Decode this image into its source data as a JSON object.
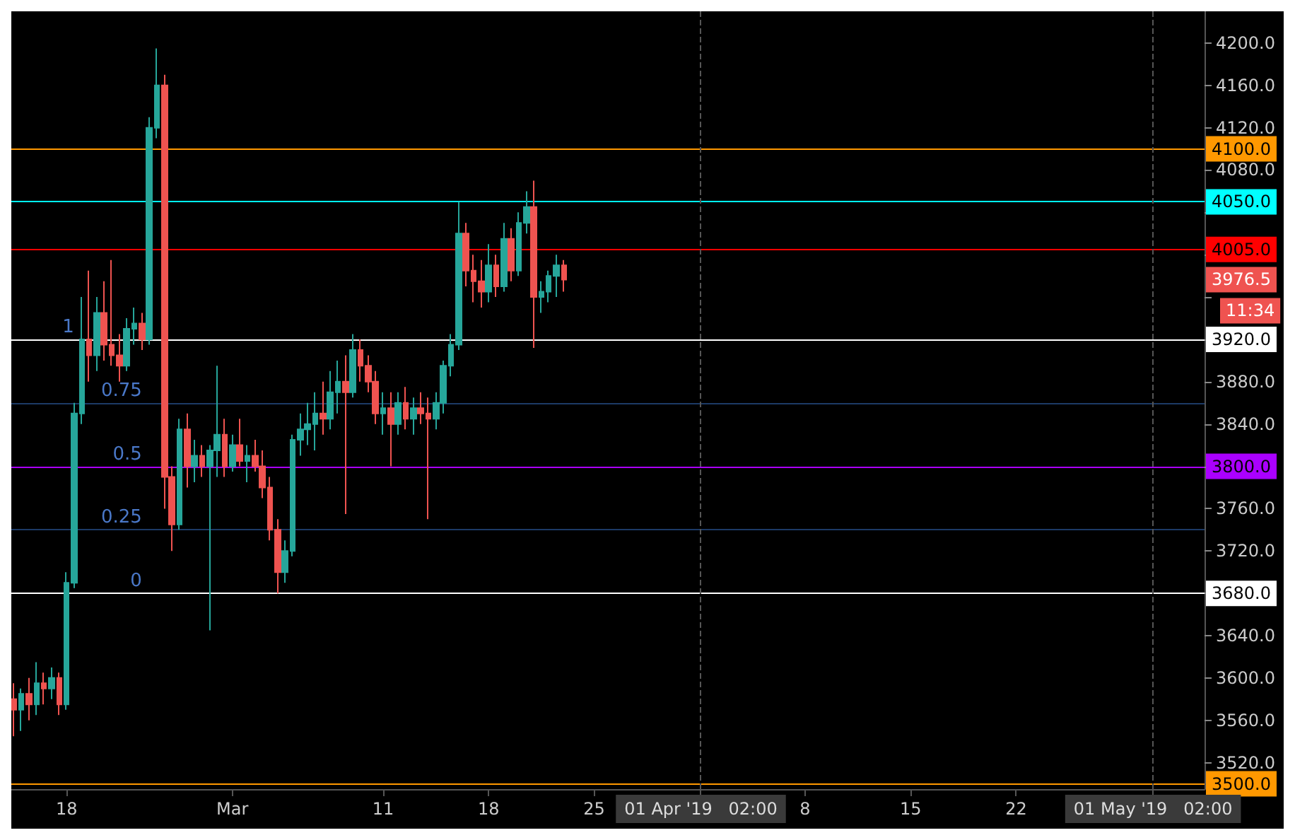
{
  "chart_data": {
    "type": "candlestick",
    "x": [
      "2019-02-14T12:00",
      "2019-02-15T00:00",
      "2019-02-15T12:00",
      "2019-02-16T00:00",
      "2019-02-16T12:00",
      "2019-02-17T00:00",
      "2019-02-17T12:00",
      "2019-02-18T00:00",
      "2019-02-18T12:00",
      "2019-02-19T00:00",
      "2019-02-19T12:00",
      "2019-02-20T00:00",
      "2019-02-20T12:00",
      "2019-02-21T00:00",
      "2019-02-21T12:00",
      "2019-02-22T00:00",
      "2019-02-22T12:00",
      "2019-02-23T00:00",
      "2019-02-23T12:00",
      "2019-02-24T00:00",
      "2019-02-24T12:00",
      "2019-02-25T00:00",
      "2019-02-25T12:00",
      "2019-02-26T00:00",
      "2019-02-26T12:00",
      "2019-02-27T00:00",
      "2019-02-27T12:00",
      "2019-02-28T00:00",
      "2019-02-28T12:00",
      "2019-03-01T00:00",
      "2019-03-01T12:00",
      "2019-03-02T00:00",
      "2019-03-02T12:00",
      "2019-03-03T00:00",
      "2019-03-03T12:00",
      "2019-03-04T00:00",
      "2019-03-04T12:00",
      "2019-03-05T00:00",
      "2019-03-05T12:00",
      "2019-03-06T00:00",
      "2019-03-06T12:00",
      "2019-03-07T00:00",
      "2019-03-07T12:00",
      "2019-03-08T00:00",
      "2019-03-08T12:00",
      "2019-03-09T00:00",
      "2019-03-09T12:00",
      "2019-03-10T00:00",
      "2019-03-10T12:00",
      "2019-03-11T00:00",
      "2019-03-11T12:00",
      "2019-03-12T00:00",
      "2019-03-12T12:00",
      "2019-03-13T00:00",
      "2019-03-13T12:00",
      "2019-03-14T00:00",
      "2019-03-14T12:00",
      "2019-03-15T00:00",
      "2019-03-15T12:00",
      "2019-03-16T00:00",
      "2019-03-16T12:00",
      "2019-03-17T00:00",
      "2019-03-17T12:00",
      "2019-03-18T00:00",
      "2019-03-18T12:00",
      "2019-03-19T00:00",
      "2019-03-19T12:00",
      "2019-03-20T00:00",
      "2019-03-20T12:00",
      "2019-03-21T00:00",
      "2019-03-21T12:00",
      "2019-03-22T00:00",
      "2019-03-22T12:00",
      "2019-03-23T00:00"
    ],
    "ohlc": [
      [
        3580,
        3595,
        3545,
        3570
      ],
      [
        3570,
        3590,
        3550,
        3585
      ],
      [
        3585,
        3600,
        3560,
        3575
      ],
      [
        3575,
        3615,
        3565,
        3595
      ],
      [
        3595,
        3605,
        3575,
        3590
      ],
      [
        3590,
        3610,
        3580,
        3600
      ],
      [
        3600,
        3605,
        3565,
        3575
      ],
      [
        3575,
        3700,
        3570,
        3690
      ],
      [
        3690,
        3860,
        3685,
        3850
      ],
      [
        3850,
        3960,
        3840,
        3920
      ],
      [
        3920,
        3985,
        3880,
        3905
      ],
      [
        3905,
        3960,
        3890,
        3945
      ],
      [
        3945,
        3975,
        3900,
        3915
      ],
      [
        3915,
        3995,
        3895,
        3905
      ],
      [
        3905,
        3925,
        3880,
        3895
      ],
      [
        3895,
        3940,
        3890,
        3930
      ],
      [
        3930,
        3950,
        3915,
        3935
      ],
      [
        3935,
        3945,
        3910,
        3920
      ],
      [
        3920,
        4130,
        3915,
        4120
      ],
      [
        4120,
        4195,
        4110,
        4160
      ],
      [
        4160,
        4170,
        3760,
        3790
      ],
      [
        3790,
        3800,
        3720,
        3745
      ],
      [
        3745,
        3845,
        3740,
        3835
      ],
      [
        3835,
        3850,
        3780,
        3800
      ],
      [
        3800,
        3825,
        3785,
        3810
      ],
      [
        3810,
        3820,
        3790,
        3800
      ],
      [
        3800,
        3820,
        3645,
        3815
      ],
      [
        3815,
        3895,
        3790,
        3830
      ],
      [
        3830,
        3845,
        3790,
        3800
      ],
      [
        3800,
        3830,
        3795,
        3820
      ],
      [
        3820,
        3845,
        3800,
        3805
      ],
      [
        3805,
        3820,
        3785,
        3810
      ],
      [
        3810,
        3825,
        3795,
        3800
      ],
      [
        3800,
        3815,
        3770,
        3780
      ],
      [
        3780,
        3790,
        3730,
        3740
      ],
      [
        3740,
        3750,
        3680,
        3700
      ],
      [
        3700,
        3730,
        3690,
        3720
      ],
      [
        3720,
        3830,
        3715,
        3825
      ],
      [
        3825,
        3850,
        3810,
        3835
      ],
      [
        3835,
        3860,
        3820,
        3840
      ],
      [
        3840,
        3870,
        3815,
        3850
      ],
      [
        3850,
        3880,
        3830,
        3845
      ],
      [
        3845,
        3890,
        3835,
        3870
      ],
      [
        3870,
        3900,
        3850,
        3880
      ],
      [
        3880,
        3905,
        3755,
        3870
      ],
      [
        3870,
        3925,
        3865,
        3910
      ],
      [
        3910,
        3920,
        3880,
        3895
      ],
      [
        3895,
        3905,
        3870,
        3880
      ],
      [
        3880,
        3890,
        3840,
        3850
      ],
      [
        3850,
        3870,
        3830,
        3855
      ],
      [
        3855,
        3870,
        3800,
        3840
      ],
      [
        3840,
        3870,
        3830,
        3860
      ],
      [
        3860,
        3875,
        3835,
        3845
      ],
      [
        3845,
        3865,
        3830,
        3855
      ],
      [
        3855,
        3870,
        3840,
        3850
      ],
      [
        3850,
        3865,
        3750,
        3845
      ],
      [
        3845,
        3870,
        3835,
        3860
      ],
      [
        3860,
        3900,
        3850,
        3895
      ],
      [
        3895,
        3925,
        3885,
        3915
      ],
      [
        3915,
        4050,
        3910,
        4020
      ],
      [
        4020,
        4030,
        3970,
        3985
      ],
      [
        3985,
        4000,
        3955,
        3975
      ],
      [
        3975,
        3995,
        3950,
        3965
      ],
      [
        3965,
        4010,
        3955,
        3990
      ],
      [
        3990,
        4000,
        3960,
        3970
      ],
      [
        3970,
        4030,
        3965,
        4015
      ],
      [
        4015,
        4025,
        3975,
        3985
      ],
      [
        3985,
        4040,
        3980,
        4030
      ],
      [
        4030,
        4060,
        4020,
        4045
      ],
      [
        4045,
        4070,
        3912,
        3960
      ],
      [
        3960,
        3975,
        3945,
        3965
      ],
      [
        3965,
        3985,
        3955,
        3980
      ],
      [
        3980,
        4000,
        3960,
        3990
      ],
      [
        3990,
        3995,
        3965,
        3976.5
      ]
    ],
    "colors": [
      "#ef5350",
      "#26a69a",
      "#ef5350",
      "#26a69a",
      "#ef5350",
      "#26a69a",
      "#ef5350",
      "#26a69a",
      "#26a69a",
      "#26a69a",
      "#ef5350",
      "#26a69a",
      "#ef5350",
      "#ef5350",
      "#ef5350",
      "#26a69a",
      "#26a69a",
      "#ef5350",
      "#26a69a",
      "#26a69a",
      "#ef5350",
      "#ef5350",
      "#26a69a",
      "#ef5350",
      "#26a69a",
      "#ef5350",
      "#26a69a",
      "#26a69a",
      "#ef5350",
      "#26a69a",
      "#ef5350",
      "#26a69a",
      "#ef5350",
      "#ef5350",
      "#ef5350",
      "#ef5350",
      "#26a69a",
      "#26a69a",
      "#26a69a",
      "#26a69a",
      "#26a69a",
      "#ef5350",
      "#26a69a",
      "#26a69a",
      "#ef5350",
      "#26a69a",
      "#ef5350",
      "#ef5350",
      "#ef5350",
      "#26a69a",
      "#ef5350",
      "#26a69a",
      "#ef5350",
      "#26a69a",
      "#ef5350",
      "#ef5350",
      "#26a69a",
      "#26a69a",
      "#26a69a",
      "#26a69a",
      "#ef5350",
      "#ef5350",
      "#ef5350",
      "#26a69a",
      "#ef5350",
      "#26a69a",
      "#ef5350",
      "#26a69a",
      "#26a69a",
      "#ef5350",
      "#26a69a",
      "#26a69a",
      "#26a69a",
      "#ef5350"
    ],
    "xlim": [
      "2019-02-14T08:00",
      "2019-05-04T12:00"
    ],
    "xticks": [
      {
        "value": "2019-02-18",
        "label": "18"
      },
      {
        "value": "2019-03-01",
        "label": "Mar"
      },
      {
        "value": "2019-03-11",
        "label": "11"
      },
      {
        "value": "2019-03-18",
        "label": "18"
      },
      {
        "value": "2019-03-25",
        "label": "25"
      },
      {
        "value": "2019-04-01T02:00",
        "label": "01 Apr '19   02:00"
      },
      {
        "value": "2019-04-08",
        "label": "8"
      },
      {
        "value": "2019-04-15",
        "label": "15"
      },
      {
        "value": "2019-04-22",
        "label": "22"
      },
      {
        "value": "2019-05-01T02:00",
        "label": "01 May '19   02:00"
      }
    ],
    "ylim": [
      3495,
      4230
    ],
    "yticks": [
      {
        "value": 3520,
        "label": "3520.0"
      },
      {
        "value": 3560,
        "label": "3560.0"
      },
      {
        "value": 3600,
        "label": "3600.0"
      },
      {
        "value": 3640,
        "label": "3640.0"
      },
      {
        "value": 3680,
        "label": null
      },
      {
        "value": 3720,
        "label": "3720.0"
      },
      {
        "value": 3760,
        "label": "3760.0"
      },
      {
        "value": 3800,
        "label": null
      },
      {
        "value": 3840,
        "label": "3840.0"
      },
      {
        "value": 3880,
        "label": "3880.0"
      },
      {
        "value": 3920,
        "label": null
      },
      {
        "value": 3960,
        "label": null
      },
      {
        "value": 4000,
        "label": null
      },
      {
        "value": 4040,
        "label": null
      },
      {
        "value": 4080,
        "label": "4080.0"
      },
      {
        "value": 4120,
        "label": "4120.0"
      },
      {
        "value": 4160,
        "label": "4160.0"
      },
      {
        "value": 4200,
        "label": "4200.0"
      }
    ],
    "ref_lines": [
      {
        "axis": "y",
        "value": 4100,
        "label": "4100.0",
        "color": "#ff9800"
      },
      {
        "axis": "y",
        "value": 4050,
        "label": "4050.0",
        "color": "#00ffff"
      },
      {
        "axis": "y",
        "value": 4005,
        "label": "4005.0",
        "color": "#ff0000"
      },
      {
        "axis": "y",
        "value": 3920,
        "label": "3920.0",
        "color": "#ffffff"
      },
      {
        "axis": "y",
        "value": 3860,
        "color": "#1c3a66"
      },
      {
        "axis": "y",
        "value": 3800,
        "label": "3800.0",
        "color": "#aa00ff"
      },
      {
        "axis": "y",
        "value": 3740,
        "color": "#1c3a66"
      },
      {
        "axis": "y",
        "value": 3680,
        "label": "3680.0",
        "color": "#ffffff"
      },
      {
        "axis": "y",
        "value": 3500,
        "label": "3500.0",
        "color": "#ff9800"
      },
      {
        "axis": "x",
        "value": "2019-04-01T02:00",
        "color": "#555555",
        "line_style": "dashed"
      },
      {
        "axis": "x",
        "value": "2019-05-01T02:00",
        "color": "#555555",
        "line_style": "dashed"
      }
    ],
    "annotations": [
      {
        "text": "1",
        "x": "2019-02-18T12:00",
        "y": 3920
      },
      {
        "text": "0.75",
        "x": "2019-02-23T00:00",
        "y": 3860
      },
      {
        "text": "0.5",
        "x": "2019-02-23T00:00",
        "y": 3800
      },
      {
        "text": "0.25",
        "x": "2019-02-23T00:00",
        "y": 3740
      },
      {
        "text": "0",
        "x": "2019-02-23T00:00",
        "y": 3680
      },
      "3976.5",
      "11:34"
    ]
  }
}
